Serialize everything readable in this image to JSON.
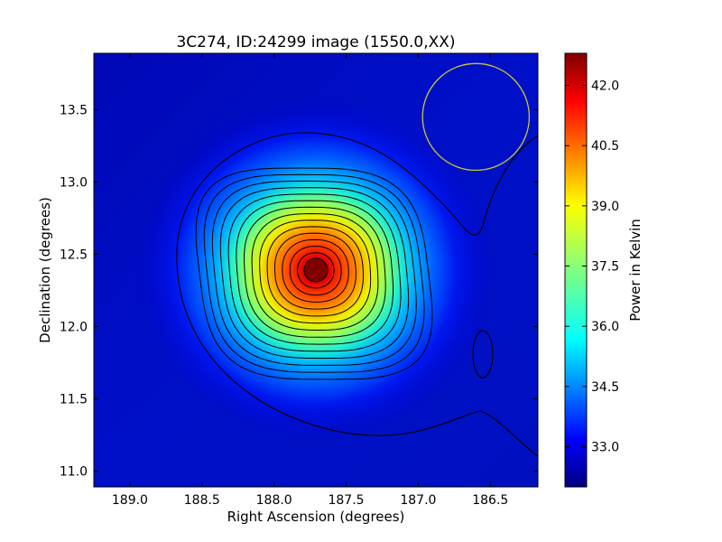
{
  "chart_data": {
    "type": "heatmap",
    "title": "3C274, ID:24299 image (1550.0,XX)",
    "xlabel": "Right Ascension (degrees)",
    "ylabel": "Declination (degrees)",
    "xlim": [
      189.25,
      186.17
    ],
    "ylim": [
      10.89,
      13.89
    ],
    "x_ticks": [
      189.0,
      188.5,
      188.0,
      187.5,
      187.0,
      186.5
    ],
    "x_tick_labels": [
      "189.0",
      "188.5",
      "188.0",
      "187.5",
      "187.0",
      "186.5"
    ],
    "y_ticks": [
      11.0,
      11.5,
      12.0,
      12.5,
      13.0,
      13.5
    ],
    "y_tick_labels": [
      "11.0",
      "11.5",
      "12.0",
      "12.5",
      "13.0",
      "13.5"
    ],
    "colormap": "jet",
    "colorbar": {
      "label": "Power in Kelvin",
      "range": [
        32.0,
        42.8
      ],
      "ticks": [
        33.0,
        34.5,
        36.0,
        37.5,
        39.0,
        40.5,
        42.0
      ],
      "tick_labels": [
        "33.0",
        "34.5",
        "36.0",
        "37.5",
        "39.0",
        "40.5",
        "42.0"
      ]
    },
    "peak": {
      "ra": 187.71,
      "dec": 12.39,
      "value": 42.6
    },
    "contours": {
      "color": "#000000",
      "levels": [
        32.5,
        33.2,
        33.9,
        34.6,
        35.3,
        36.0,
        36.7,
        37.4,
        38.1,
        38.8,
        39.5,
        40.2,
        40.9,
        41.6,
        42.3
      ]
    },
    "beam_circle": {
      "ra": 186.6,
      "dec": 13.45,
      "radius_deg": 0.37,
      "color": "#c8c832"
    },
    "grid": false
  }
}
